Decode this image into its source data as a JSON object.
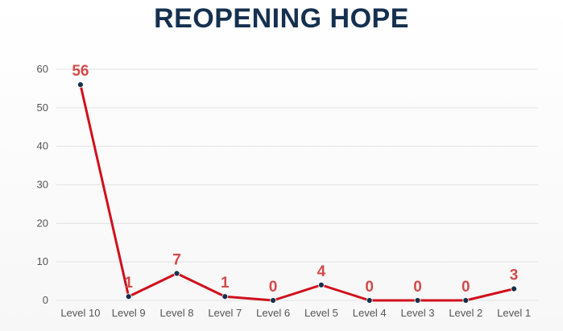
{
  "chart_data": {
    "type": "line",
    "title": "REOPENING HOPE",
    "xlabel": "",
    "ylabel": "",
    "categories": [
      "Level 10",
      "Level 9",
      "Level 8",
      "Level 7",
      "Level 6",
      "Level 5",
      "Level 4",
      "Level 3",
      "Level 2",
      "Level 1"
    ],
    "series": [
      {
        "values": [
          56,
          1,
          7,
          1,
          0,
          4,
          0,
          0,
          0,
          3
        ]
      }
    ],
    "data_labels": [
      "56",
      "1",
      "7",
      "1",
      "0",
      "4",
      "0",
      "0",
      "0",
      "3"
    ],
    "yticks": [
      "0",
      "10",
      "20",
      "30",
      "40",
      "50",
      "60"
    ],
    "ylim": [
      0,
      60
    ],
    "grid": true,
    "legend": "none",
    "colors": {
      "line": "#d0101c",
      "marker": "#15304f",
      "label": "#d24a4a",
      "title": "#15304f",
      "grid": "#e3e3e3"
    }
  }
}
